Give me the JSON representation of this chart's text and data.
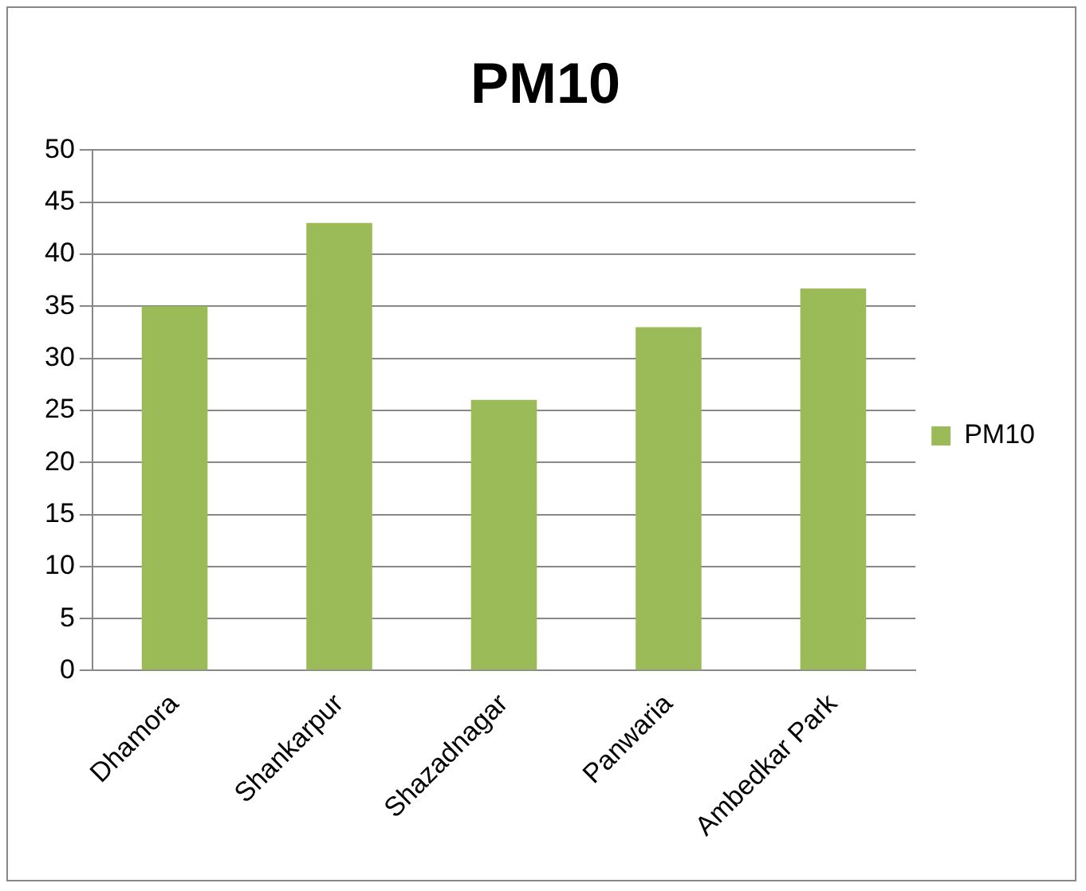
{
  "chart_data": {
    "type": "bar",
    "title": "PM10",
    "categories": [
      "Dhamora",
      "Shankarpur",
      "Shazadnagar",
      "Panwaria",
      "Ambedkar Park"
    ],
    "series": [
      {
        "name": "PM10",
        "color": "#9bbb59",
        "values": [
          35,
          43,
          26,
          33,
          36.7
        ]
      }
    ],
    "ylim": [
      0,
      50
    ],
    "yticks": [
      0,
      5,
      10,
      15,
      20,
      25,
      30,
      35,
      40,
      45,
      50
    ],
    "grid": "y",
    "legend": "right"
  }
}
